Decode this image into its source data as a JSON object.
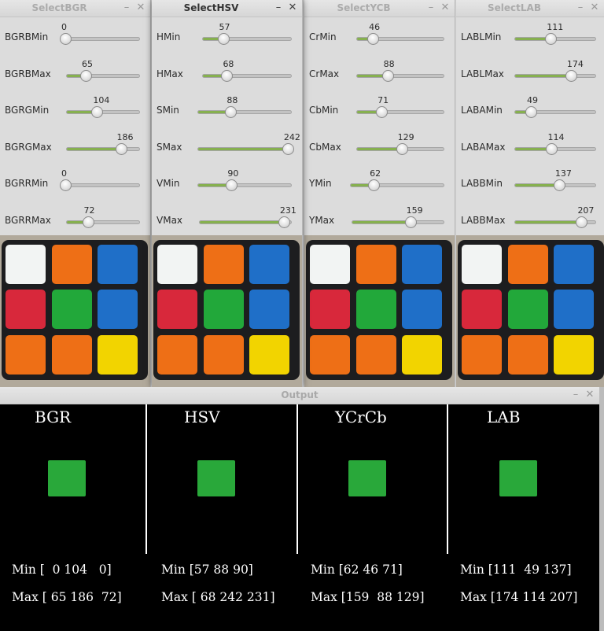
{
  "windows": [
    {
      "id": "bgr",
      "title": "SelectBGR",
      "active": false,
      "sliders": [
        {
          "label": "BGRBMin",
          "value": "0",
          "fraction": 0
        },
        {
          "label": "BGRBMax",
          "value": "65",
          "fraction": 0.255
        },
        {
          "label": "BGRGMin",
          "value": "104",
          "fraction": 0.408
        },
        {
          "label": "BGRGMax",
          "value": "186",
          "fraction": 0.729
        },
        {
          "label": "BGRRMin",
          "value": "0",
          "fraction": 0
        },
        {
          "label": "BGRRMax",
          "value": "72",
          "fraction": 0.282
        }
      ]
    },
    {
      "id": "hsv",
      "title": "SelectHSV",
      "active": true,
      "sliders": [
        {
          "label": "HMin",
          "value": "57",
          "fraction": 0.224
        },
        {
          "label": "HMax",
          "value": "68",
          "fraction": 0.267
        },
        {
          "label": "SMin",
          "value": "88",
          "fraction": 0.345
        },
        {
          "label": "SMax",
          "value": "242",
          "fraction": 0.949
        },
        {
          "label": "VMin",
          "value": "90",
          "fraction": 0.353
        },
        {
          "label": "VMax",
          "value": "231",
          "fraction": 0.906
        }
      ]
    },
    {
      "id": "ycb",
      "title": "SelectYCB",
      "active": false,
      "sliders": [
        {
          "label": "CrMin",
          "value": "46",
          "fraction": 0.18
        },
        {
          "label": "CrMax",
          "value": "88",
          "fraction": 0.345
        },
        {
          "label": "CbMin",
          "value": "71",
          "fraction": 0.278
        },
        {
          "label": "CbMax",
          "value": "129",
          "fraction": 0.506
        },
        {
          "label": "YMin",
          "value": "62",
          "fraction": 0.243
        },
        {
          "label": "YMax",
          "value": "159",
          "fraction": 0.624
        }
      ]
    },
    {
      "id": "lab",
      "title": "SelectLAB",
      "active": false,
      "sliders": [
        {
          "label": "LABLMin",
          "value": "111",
          "fraction": 0.435
        },
        {
          "label": "LABLMax",
          "value": "174",
          "fraction": 0.682
        },
        {
          "label": "LABAMin",
          "value": "49",
          "fraction": 0.192
        },
        {
          "label": "LABAMax",
          "value": "114",
          "fraction": 0.447
        },
        {
          "label": "LABBMin",
          "value": "137",
          "fraction": 0.537
        },
        {
          "label": "LABBMax",
          "value": "207",
          "fraction": 0.812
        }
      ]
    }
  ],
  "window_buttons": {
    "minimize": "–",
    "close": "✕"
  },
  "cube_colors": [
    "#f2f4f3",
    "#ee6f16",
    "#1f6fc8",
    "#d8283b",
    "#22a83a",
    "#1f6fc8",
    "#ee6f16",
    "#ee6f16",
    "#f2d400"
  ],
  "slider_fill_color": "#86b04f",
  "output": {
    "title": "Output",
    "mask_color": "#29a83a",
    "panels": [
      {
        "name": "BGR",
        "min": "Min [  0 104   0]",
        "max": "Max [ 65 186  72]"
      },
      {
        "name": "HSV",
        "min": "Min [57 88 90]",
        "max": "Max [ 68 242 231]"
      },
      {
        "name": "YCrCb",
        "min": "Min [62 46 71]",
        "max": "Max [159  88 129]"
      },
      {
        "name": "LAB",
        "min": "Min [111  49 137]",
        "max": "Max [174 114 207]"
      }
    ]
  }
}
